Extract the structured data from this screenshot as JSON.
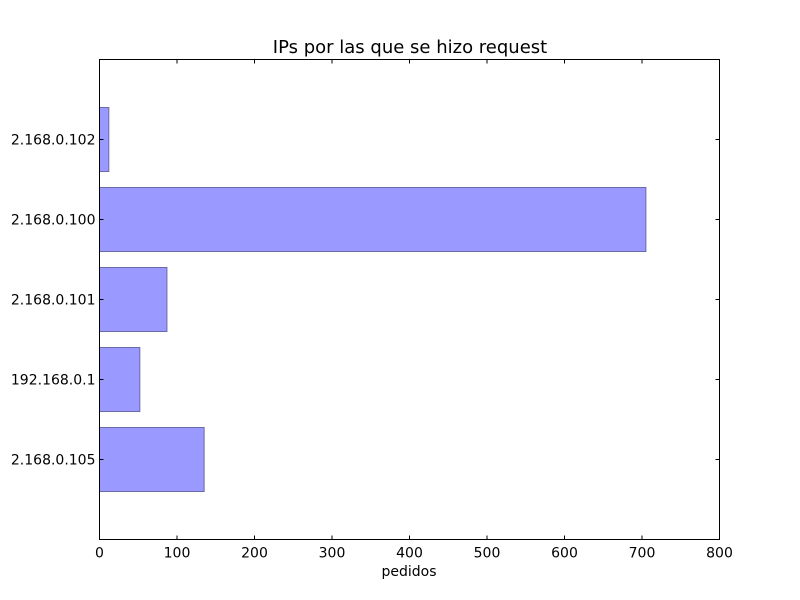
{
  "chart_data": {
    "type": "bar",
    "orientation": "horizontal",
    "title": "IPs por las que se hizo request",
    "xlabel": "pedidos",
    "ylabel": "",
    "categories": [
      "2.168.0.102",
      "2.168.0.100",
      "2.168.0.101",
      "192.168.0.1",
      "2.168.0.105"
    ],
    "values": [
      12,
      705,
      87,
      52,
      135
    ],
    "xlim": [
      0,
      800
    ],
    "x_ticks": [
      0,
      100,
      200,
      300,
      400,
      500,
      600,
      700,
      800
    ],
    "grid": false,
    "colors": {
      "bar_fill": "#9999ff",
      "bar_stroke": "#6a6aa8",
      "frame": "#000000"
    }
  }
}
